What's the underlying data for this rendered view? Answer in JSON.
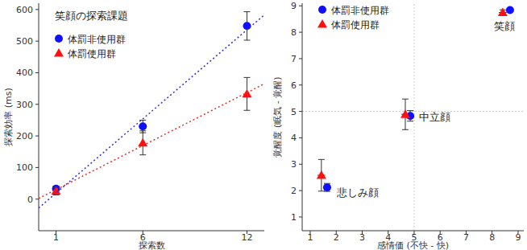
{
  "chart_data": [
    {
      "type": "scatter",
      "title": "笑顔の探索課題",
      "x_label": "探索数",
      "y_label": "探索効率 (ms)",
      "xlim": [
        0,
        13
      ],
      "xticks": [
        1,
        6,
        12
      ],
      "ylim": [
        -100,
        620
      ],
      "yticks": [
        0,
        100,
        200,
        300,
        400,
        500,
        600
      ],
      "grid": false,
      "legend": "top-left",
      "series": [
        {
          "name": "体罰非使用群",
          "color": "#1010ff",
          "marker": "circle",
          "x": [
            1,
            6,
            12
          ],
          "values": [
            33,
            230,
            548
          ],
          "errors": [
            8,
            20,
            45
          ]
        },
        {
          "name": "体罰使用群",
          "color": "#ff1010",
          "marker": "triangle",
          "x": [
            1,
            6,
            12
          ],
          "values": [
            25,
            178,
            333
          ],
          "errors": [
            12,
            38,
            52
          ]
        },
        {
          "type": "line",
          "line_style": "dotted",
          "color": "#3030d0",
          "x": [
            0,
            13
          ],
          "values": [
            -28,
            583
          ]
        },
        {
          "type": "line",
          "line_style": "dotted",
          "color": "#e03030",
          "x": [
            0,
            13
          ],
          "values": [
            2,
            365
          ]
        }
      ]
    },
    {
      "type": "scatter",
      "x_label": "感情価 (不快 - 快)",
      "y_label": "覚醒度 (眠気 - 覚醒)",
      "xlim": [
        0.69,
        9.22
      ],
      "xticks": [
        1,
        2,
        3,
        4,
        5,
        6,
        7,
        8,
        9
      ],
      "ylim": [
        0.48,
        9.1
      ],
      "yticks": [
        1,
        2,
        3,
        4,
        5,
        6,
        7,
        8,
        9
      ],
      "grid": false,
      "legend": "top-left",
      "reference_lines": {
        "x": 5,
        "y": 5
      },
      "point_labels": [
        "悲しみ顔",
        "中立顔",
        "笑顔"
      ],
      "series": [
        {
          "name": "体罰非使用群",
          "color": "#1010ff",
          "marker": "circle",
          "x": [
            1.65,
            4.85,
            8.69
          ],
          "values": [
            2.12,
            4.83,
            8.84
          ],
          "x_errors": [
            0.15,
            0.15,
            0.08
          ],
          "errors": [
            0.15,
            0.2,
            0.06
          ]
        },
        {
          "name": "体罰使用群",
          "color": "#ff1010",
          "marker": "triangle",
          "x": [
            1.43,
            4.66,
            8.41
          ],
          "values": [
            2.58,
            4.89,
            8.75
          ],
          "x_errors": [
            0.15,
            0.15,
            0.15
          ],
          "errors": [
            0.6,
            0.58,
            0.1
          ]
        }
      ]
    }
  ]
}
